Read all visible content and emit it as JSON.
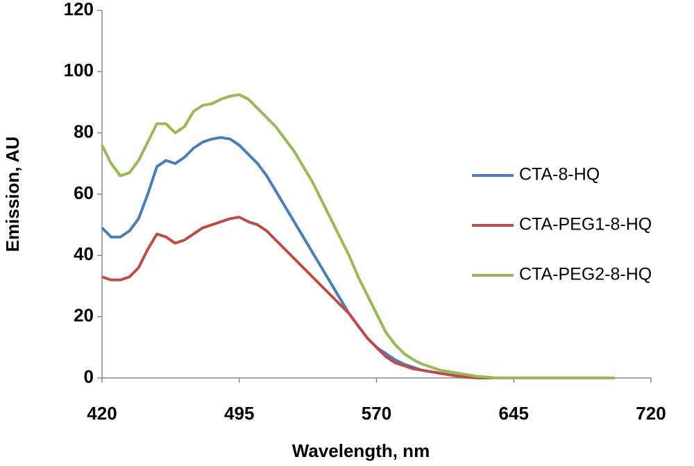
{
  "chart_data": {
    "type": "line",
    "x_label": "Wavelength, nm",
    "y_label": "Emission, AU",
    "x": [
      420,
      425,
      430,
      435,
      440,
      445,
      450,
      455,
      460,
      465,
      470,
      475,
      480,
      485,
      490,
      495,
      500,
      505,
      510,
      515,
      520,
      525,
      530,
      535,
      540,
      545,
      550,
      555,
      560,
      565,
      570,
      575,
      580,
      585,
      590,
      595,
      600,
      605,
      610,
      615,
      620,
      625,
      630,
      635,
      640,
      645,
      650,
      655,
      660,
      665,
      670,
      675,
      680,
      685,
      690,
      695,
      700
    ],
    "series": [
      {
        "name": "CTA-8-HQ",
        "color": "#4a7ebb",
        "values": [
          49,
          46,
          46,
          48,
          52,
          60,
          69,
          71,
          70,
          72,
          75,
          77,
          78,
          78.5,
          78,
          76,
          73,
          70,
          66,
          61,
          56,
          51,
          46,
          41,
          36,
          31,
          26,
          21,
          17,
          13,
          10,
          8,
          6,
          4.5,
          3.5,
          2.5,
          2,
          1.5,
          1,
          0.6,
          0.3,
          0.2,
          0,
          0,
          0,
          0,
          0,
          0,
          0,
          0,
          0,
          0,
          0,
          0,
          0,
          0,
          0
        ]
      },
      {
        "name": "CTA-PEG1-8-HQ",
        "color": "#be4b48",
        "values": [
          33,
          32,
          32,
          33,
          36,
          42,
          47,
          46,
          44,
          45,
          47,
          49,
          50,
          51,
          52,
          52.5,
          51,
          50,
          48,
          45,
          42,
          39,
          36,
          33,
          30,
          27,
          24,
          21,
          17,
          13,
          10,
          7,
          5,
          4,
          3,
          2.5,
          2,
          1.5,
          1,
          0.5,
          0.2,
          0,
          0,
          0,
          0,
          0,
          0,
          0,
          0,
          0,
          0,
          0,
          0,
          0,
          0,
          0,
          0
        ]
      },
      {
        "name": "CTA-PEG2-8-HQ",
        "color": "#98b954",
        "values": [
          76,
          70,
          66,
          67,
          71,
          77,
          83,
          83,
          80,
          82,
          87,
          89,
          89.5,
          91,
          92,
          92.5,
          91,
          88,
          85,
          82,
          78,
          74,
          69,
          64,
          58,
          52,
          46,
          40,
          33,
          27,
          21,
          15,
          11,
          8,
          6,
          4.5,
          3.5,
          2.5,
          2,
          1.5,
          1,
          0.5,
          0.3,
          0,
          0,
          0,
          0,
          0,
          0,
          0,
          0,
          0,
          0,
          0,
          0,
          0,
          0
        ]
      }
    ],
    "xlim": [
      420,
      720
    ],
    "xticks": [
      420,
      495,
      570,
      645,
      720
    ],
    "ylim": [
      0,
      120
    ],
    "yticks": [
      0,
      20,
      40,
      60,
      80,
      100,
      120
    ],
    "grid": false,
    "legend": "right"
  }
}
